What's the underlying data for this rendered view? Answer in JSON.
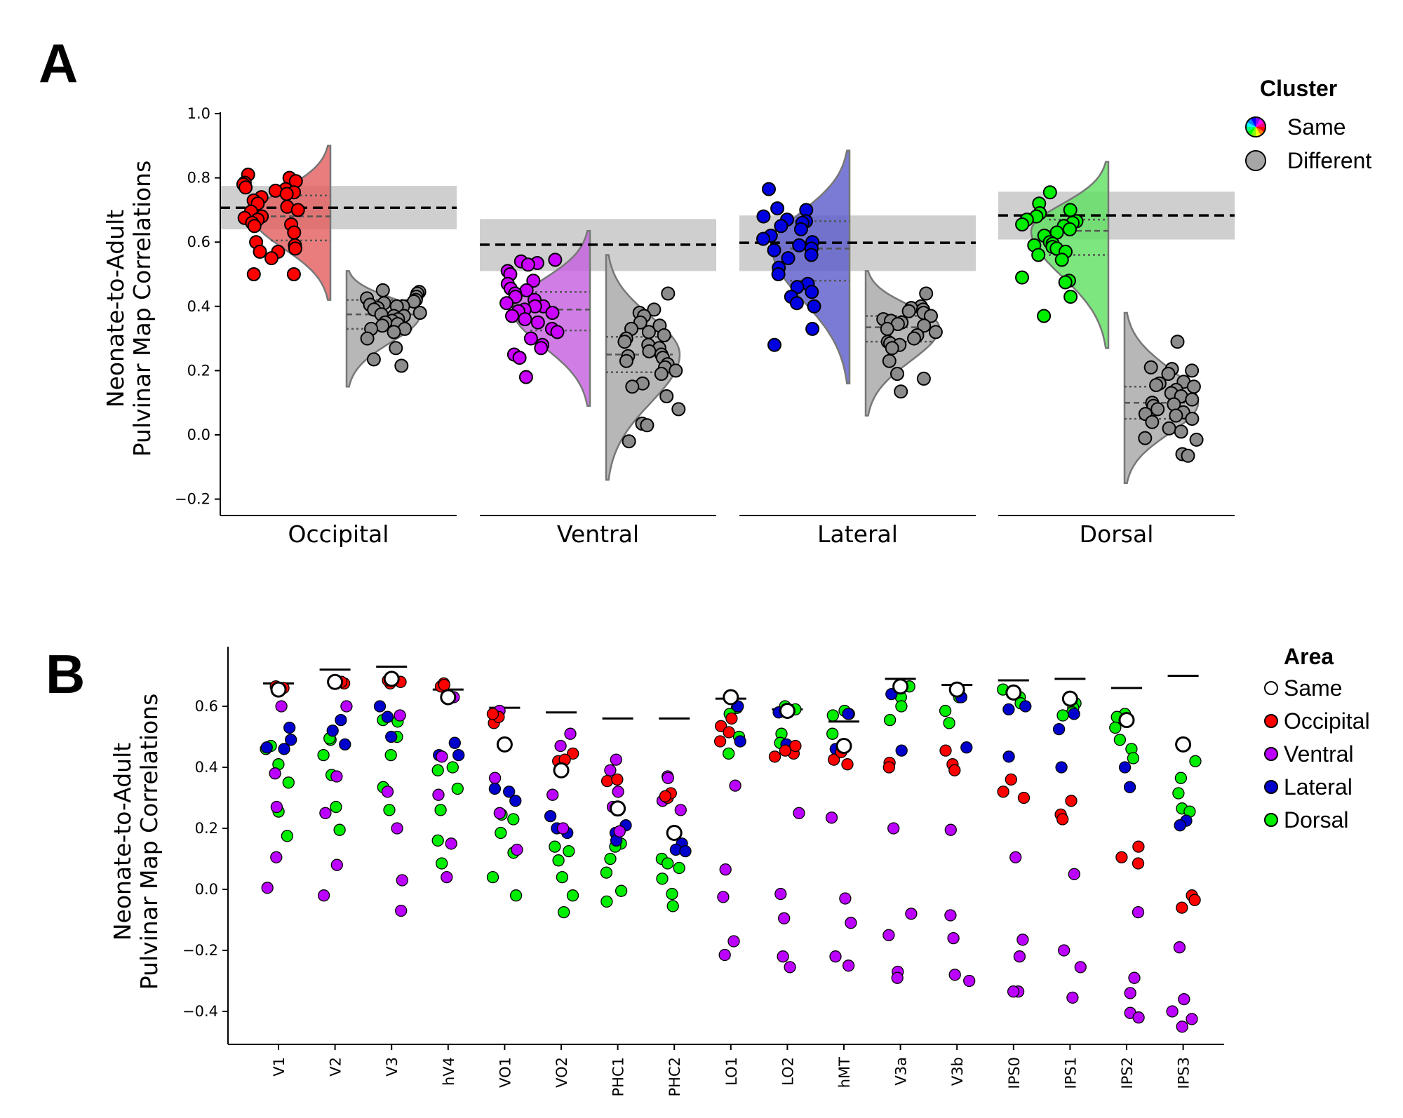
{
  "figure": {
    "panel_a_letter": "A",
    "panel_b_letter": "B"
  },
  "chart_data": [
    {
      "id": "panel_a",
      "type": "violin-scatter",
      "title": "",
      "ylabel_line1": "Neonate-to-Adult",
      "ylabel_line2": "Pulvinar Map Correlations",
      "xlabel": "",
      "ylim": [
        -0.25,
        1.0
      ],
      "yticks": [
        1.0,
        0.8,
        0.6,
        0.4,
        0.2,
        0.0,
        -0.2
      ],
      "ytick_labels": [
        "1.0",
        "0.8",
        "0.6",
        "0.4",
        "0.2",
        "0.0",
        "−0.2"
      ],
      "grid": false,
      "legend": {
        "title": "Cluster",
        "placement": "right",
        "entries": [
          {
            "label": "Same",
            "marker": "rainbow-circle"
          },
          {
            "label": "Different",
            "marker": "gray-circle",
            "color": "#a6a6a6"
          }
        ]
      },
      "groups": [
        {
          "name": "Occipital",
          "color": "#ff0000",
          "violin_color": "#e35c5c",
          "reference": {
            "mean": 0.707,
            "band": [
              0.64,
              0.775
            ]
          },
          "same": {
            "range": [
              0.42,
              0.9
            ],
            "quartiles": [
              0.605,
              0.68,
              0.745
            ],
            "values": [
              0.81,
              0.8,
              0.79,
              0.785,
              0.78,
              0.77,
              0.765,
              0.76,
              0.755,
              0.75,
              0.74,
              0.73,
              0.72,
              0.71,
              0.7,
              0.695,
              0.68,
              0.675,
              0.67,
              0.66,
              0.655,
              0.65,
              0.63,
              0.6,
              0.59,
              0.58,
              0.57,
              0.57,
              0.55,
              0.5,
              0.5
            ]
          },
          "different": {
            "range": [
              0.15,
              0.51
            ],
            "quartiles": [
              0.33,
              0.375,
              0.42
            ],
            "values": [
              0.45,
              0.445,
              0.44,
              0.43,
              0.425,
              0.42,
              0.415,
              0.41,
              0.405,
              0.4,
              0.4,
              0.395,
              0.39,
              0.38,
              0.375,
              0.37,
              0.37,
              0.36,
              0.355,
              0.35,
              0.345,
              0.34,
              0.33,
              0.33,
              0.32,
              0.3,
              0.27,
              0.235,
              0.215
            ]
          }
        },
        {
          "name": "Ventral",
          "color": "#cc00ff",
          "violin_color": "#c45ee0",
          "reference": {
            "mean": 0.592,
            "band": [
              0.51,
              0.672
            ]
          },
          "same": {
            "range": [
              0.09,
              0.635
            ],
            "quartiles": [
              0.325,
              0.39,
              0.445
            ],
            "values": [
              0.545,
              0.54,
              0.535,
              0.53,
              0.51,
              0.5,
              0.48,
              0.47,
              0.455,
              0.45,
              0.44,
              0.43,
              0.42,
              0.41,
              0.4,
              0.4,
              0.39,
              0.385,
              0.38,
              0.37,
              0.36,
              0.35,
              0.33,
              0.32,
              0.3,
              0.28,
              0.27,
              0.25,
              0.24,
              0.18
            ]
          },
          "different": {
            "range": [
              -0.14,
              0.56
            ],
            "quartiles": [
              0.195,
              0.25,
              0.305
            ],
            "values": [
              0.44,
              0.39,
              0.38,
              0.37,
              0.35,
              0.34,
              0.33,
              0.32,
              0.31,
              0.3,
              0.29,
              0.28,
              0.27,
              0.26,
              0.25,
              0.245,
              0.24,
              0.23,
              0.22,
              0.21,
              0.2,
              0.19,
              0.16,
              0.15,
              0.12,
              0.08,
              0.035,
              0.03,
              -0.02
            ]
          }
        },
        {
          "name": "Lateral",
          "color": "#0000e0",
          "violin_color": "#5a5acc",
          "reference": {
            "mean": 0.598,
            "band": [
              0.51,
              0.683
            ]
          },
          "same": {
            "range": [
              0.16,
              0.885
            ],
            "quartiles": [
              0.48,
              0.58,
              0.665
            ],
            "values": [
              0.765,
              0.705,
              0.7,
              0.68,
              0.67,
              0.665,
              0.66,
              0.65,
              0.64,
              0.62,
              0.61,
              0.6,
              0.59,
              0.58,
              0.575,
              0.56,
              0.55,
              0.52,
              0.5,
              0.47,
              0.46,
              0.445,
              0.43,
              0.41,
              0.4,
              0.33,
              0.28
            ]
          },
          "different": {
            "range": [
              0.06,
              0.51
            ],
            "quartiles": [
              0.29,
              0.335,
              0.37
            ],
            "values": [
              0.44,
              0.4,
              0.395,
              0.39,
              0.385,
              0.38,
              0.37,
              0.36,
              0.355,
              0.35,
              0.345,
              0.34,
              0.33,
              0.32,
              0.31,
              0.3,
              0.29,
              0.285,
              0.28,
              0.27,
              0.23,
              0.19,
              0.175,
              0.135
            ]
          }
        },
        {
          "name": "Dorsal",
          "color": "#00ee00",
          "violin_color": "#5ee05e",
          "reference": {
            "mean": 0.683,
            "band": [
              0.608,
              0.757
            ]
          },
          "same": {
            "range": [
              0.27,
              0.85
            ],
            "quartiles": [
              0.56,
              0.635,
              0.67
            ],
            "values": [
              0.755,
              0.72,
              0.7,
              0.69,
              0.68,
              0.67,
              0.665,
              0.66,
              0.655,
              0.65,
              0.64,
              0.63,
              0.62,
              0.6,
              0.595,
              0.59,
              0.585,
              0.58,
              0.57,
              0.56,
              0.545,
              0.49,
              0.48,
              0.475,
              0.43,
              0.37
            ]
          },
          "different": {
            "range": [
              -0.15,
              0.38
            ],
            "quartiles": [
              0.05,
              0.1,
              0.15
            ],
            "values": [
              0.29,
              0.21,
              0.205,
              0.2,
              0.19,
              0.165,
              0.16,
              0.155,
              0.15,
              0.14,
              0.13,
              0.12,
              0.11,
              0.1,
              0.095,
              0.09,
              0.08,
              0.07,
              0.065,
              0.06,
              0.05,
              0.04,
              0.02,
              0.01,
              -0.01,
              -0.015,
              -0.06,
              -0.065
            ]
          }
        }
      ],
      "different_color": "#8c8c8c",
      "different_violin_color": "#b3b3b3",
      "band_color": "#cccccc"
    },
    {
      "id": "panel_b",
      "type": "scatter",
      "title": "",
      "ylabel_line1": "Neonate-to-Adult",
      "ylabel_line2": "Pulvinar Map Correlations",
      "xlabel": "",
      "ylim": [
        -0.5,
        0.78
      ],
      "yticks": [
        0.6,
        0.4,
        0.2,
        0.0,
        -0.2,
        -0.4
      ],
      "ytick_labels": [
        "0.6",
        "0.4",
        "0.2",
        "0.0",
        "−0.2",
        "−0.4"
      ],
      "grid": false,
      "legend": {
        "title": "Area",
        "placement": "right",
        "entries": [
          {
            "label": "Same",
            "color": "#ffffff"
          },
          {
            "label": "Occipital",
            "color": "#ff0000"
          },
          {
            "label": "Ventral",
            "color": "#bb00ff"
          },
          {
            "label": "Lateral",
            "color": "#0000cc"
          },
          {
            "label": "Dorsal",
            "color": "#00ee00"
          }
        ]
      },
      "categories": [
        "V1",
        "V2",
        "V3",
        "hV4",
        "VO1",
        "VO2",
        "PHC1",
        "PHC2",
        "LO1",
        "LO2",
        "hMT",
        "V3a",
        "V3b",
        "IPS0",
        "IPS1",
        "IPS2",
        "IPS3"
      ],
      "mean_bars": [
        0.675,
        0.72,
        0.73,
        0.655,
        0.595,
        0.58,
        0.56,
        0.56,
        0.625,
        0.59,
        0.55,
        0.69,
        0.67,
        0.685,
        0.69,
        0.66,
        0.7
      ],
      "series": [
        {
          "name": "Same",
          "values": [
            [
              0.655
            ],
            [
              0.68
            ],
            [
              0.69
            ],
            [
              0.63
            ],
            [
              0.475
            ],
            [
              0.39
            ],
            [
              0.265
            ],
            [
              0.185
            ],
            [
              0.63
            ],
            [
              0.585
            ],
            [
              0.47
            ],
            [
              0.665
            ],
            [
              0.655
            ],
            [
              0.645
            ],
            [
              0.625
            ],
            [
              0.555
            ],
            [
              0.475
            ]
          ]
        },
        {
          "name": "Occipital",
          "values": [
            [
              0.66,
              0.665
            ],
            [
              0.675,
              0.68
            ],
            [
              0.68,
              0.675,
              0.685
            ],
            [
              0.665,
              0.675,
              0.67
            ],
            [
              0.545,
              0.565,
              0.575
            ],
            [
              0.42,
              0.445,
              0.425
            ],
            [
              0.355,
              0.36
            ],
            [
              0.3,
              0.315,
              0.305
            ],
            [
              0.56,
              0.535,
              0.515,
              0.485
            ],
            [
              0.445,
              0.455,
              0.47,
              0.435
            ],
            [
              0.425,
              0.45,
              0.41
            ],
            [
              0.415,
              0.4
            ],
            [
              0.41,
              0.39,
              0.455
            ],
            [
              0.36,
              0.32,
              0.3
            ],
            [
              0.29,
              0.245,
              0.23
            ],
            [
              0.14,
              0.105,
              0.085
            ],
            [
              -0.02,
              -0.035,
              -0.06
            ]
          ]
        },
        {
          "name": "Ventral",
          "values": [
            [
              0.6,
              0.38,
              0.27,
              0.105,
              0.005
            ],
            [
              0.6,
              0.37,
              0.25,
              0.08,
              -0.02
            ],
            [
              0.57,
              0.32,
              0.2,
              0.03,
              -0.07
            ],
            [
              0.63,
              0.435,
              0.31,
              0.15,
              0.04
            ],
            [
              0.585,
              0.365,
              0.25,
              0.13
            ],
            [
              0.51,
              0.47,
              0.31,
              0.2
            ],
            [
              0.425,
              0.39,
              0.32,
              0.27,
              0.19
            ],
            [
              0.37,
              0.365,
              0.29,
              0.26
            ],
            [
              0.34,
              0.065,
              -0.025,
              -0.17,
              -0.215
            ],
            [
              0.25,
              -0.015,
              -0.095,
              -0.22,
              -0.255
            ],
            [
              0.235,
              -0.03,
              -0.11,
              -0.22,
              -0.25
            ],
            [
              0.2,
              -0.08,
              -0.15,
              -0.27,
              -0.29
            ],
            [
              0.195,
              -0.085,
              -0.16,
              -0.28,
              -0.3
            ],
            [
              0.105,
              -0.165,
              -0.22,
              -0.335,
              -0.335
            ],
            [
              0.05,
              -0.2,
              -0.255,
              -0.355
            ],
            [
              -0.075,
              -0.29,
              -0.34,
              -0.405,
              -0.42
            ],
            [
              -0.19,
              -0.36,
              -0.4,
              -0.425,
              -0.45
            ]
          ]
        },
        {
          "name": "Lateral",
          "values": [
            [
              0.53,
              0.49,
              0.465,
              0.46
            ],
            [
              0.555,
              0.52,
              0.475
            ],
            [
              0.6,
              0.565,
              0.5
            ],
            [
              0.48,
              0.44,
              0.44
            ],
            [
              0.33,
              0.32,
              0.29
            ],
            [
              0.24,
              0.2,
              0.185
            ],
            [
              0.21,
              0.185,
              0.16
            ],
            [
              0.15,
              0.13,
              0.125
            ],
            [
              0.6,
              0.485
            ],
            [
              0.58,
              0.475
            ],
            [
              0.575,
              0.46
            ],
            [
              0.64,
              0.455
            ],
            [
              0.63,
              0.465
            ],
            [
              0.6,
              0.59,
              0.435
            ],
            [
              0.575,
              0.525,
              0.4
            ],
            [
              0.4,
              0.335
            ],
            [
              0.225,
              0.21
            ]
          ]
        },
        {
          "name": "Dorsal",
          "values": [
            [
              0.47,
              0.46,
              0.41,
              0.35,
              0.255,
              0.175
            ],
            [
              0.49,
              0.495,
              0.44,
              0.375,
              0.27,
              0.195
            ],
            [
              0.55,
              0.555,
              0.5,
              0.44,
              0.335,
              0.26
            ],
            [
              0.4,
              0.39,
              0.33,
              0.26,
              0.16,
              0.085
            ],
            [
              0.245,
              0.23,
              0.185,
              0.12,
              0.04,
              -0.02
            ],
            [
              0.14,
              0.125,
              0.095,
              0.04,
              -0.02,
              -0.075
            ],
            [
              0.15,
              0.14,
              0.1,
              0.055,
              -0.005,
              -0.04
            ],
            [
              0.1,
              0.085,
              0.07,
              0.035,
              -0.015,
              -0.055
            ],
            [
              0.595,
              0.575,
              0.5,
              0.445
            ],
            [
              0.6,
              0.59,
              0.51,
              0.48
            ],
            [
              0.585,
              0.575,
              0.57,
              0.51
            ],
            [
              0.665,
              0.63,
              0.6,
              0.555
            ],
            [
              0.66,
              0.63,
              0.585,
              0.545
            ],
            [
              0.655,
              0.63,
              0.61
            ],
            [
              0.61,
              0.595,
              0.58,
              0.57
            ],
            [
              0.575,
              0.565,
              0.53,
              0.49,
              0.46,
              0.43
            ],
            [
              0.42,
              0.365,
              0.315,
              0.265,
              0.255
            ]
          ]
        }
      ]
    }
  ]
}
